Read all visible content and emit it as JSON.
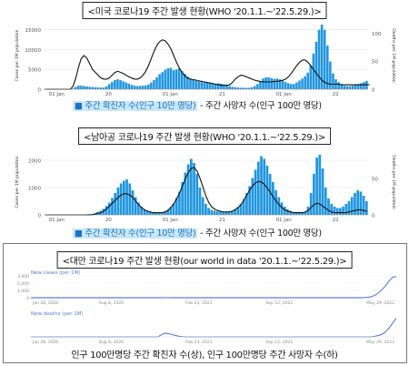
{
  "panels": [
    {
      "title": "<미국 코로나19 주간 발생 현황(WHO '20.1.1.~'22.5.29.)>",
      "legend_cases": "■ 주간 확진자 수(인구 10만 명당)",
      "legend_deaths": "- 주간 사망자 수(인구 100만 명당)",
      "chart_data": {
        "type": "bar",
        "ylabel_left": "Cases per 1M population",
        "ylabel_right": "Deaths per 1M population",
        "y_ticks_left": [
          "0",
          "5000",
          "10000",
          "15000"
        ],
        "y_ticks_right": [
          "0",
          "50",
          "100"
        ],
        "x_ticks": [
          "01 Jan",
          "20",
          "01 Jan",
          "21",
          "01 Jan",
          "22"
        ],
        "ylim_left": [
          0,
          17000
        ],
        "ylim_right": [
          0,
          120
        ],
        "series": [
          {
            "name": "cases",
            "values": [
              0,
              0,
              0,
              0,
              0,
              0,
              0,
              0,
              0,
              20,
              200,
              600,
              900,
              900,
              800,
              700,
              600,
              550,
              500,
              450,
              400,
              420,
              700,
              1300,
              1800,
              2300,
              2500,
              2300,
              2000,
              1700,
              1400,
              1100,
              900,
              800,
              850,
              900,
              950,
              1200,
              1700,
              2300,
              3000,
              3800,
              4300,
              4900,
              5300,
              5400,
              4800,
              5000,
              5300,
              4600,
              3900,
              3200,
              2700,
              2400,
              2100,
              1900,
              1800,
              1700,
              1600,
              1500,
              1450,
              1400,
              1500,
              1400,
              1200,
              1000,
              800,
              600,
              500,
              420,
              380,
              350,
              330,
              350,
              500,
              800,
              1300,
              2000,
              2700,
              3000,
              3000,
              2800,
              2600,
              2700,
              2500,
              2200,
              1800,
              1500,
              1300,
              1300,
              1700,
              2200,
              2700,
              3300,
              4200,
              6000,
              9000,
              12000,
              15000,
              16300,
              15000,
              11000,
              7000,
              4000,
              2500,
              1800,
              1300,
              900,
              800,
              800,
              900,
              1100,
              1300,
              1500,
              1800,
              2100
            ]
          },
          {
            "name": "deaths",
            "values": [
              0,
              0,
              0,
              0,
              0,
              0,
              0,
              0,
              0,
              0,
              5,
              20,
              40,
              55,
              60,
              55,
              45,
              35,
              30,
              25,
              20,
              18,
              18,
              20,
              25,
              30,
              32,
              30,
              28,
              25,
              22,
              20,
              18,
              18,
              20,
              25,
              32,
              42,
              55,
              68,
              78,
              85,
              88,
              86,
              80,
              72,
              60,
              48,
              38,
              30,
              24,
              20,
              18,
              17,
              16,
              15,
              14,
              13,
              12,
              11,
              10,
              9,
              8,
              7,
              7,
              7,
              8,
              12,
              18,
              22,
              25,
              24,
              22,
              20,
              18,
              16,
              15,
              14,
              13,
              13,
              13,
              13,
              14,
              14,
              15,
              16,
              18,
              22,
              28,
              35,
              42,
              48,
              52,
              52,
              48,
              42,
              35,
              28,
              22,
              16,
              12,
              10,
              9,
              9,
              9,
              9,
              8,
              8,
              8,
              8,
              8,
              8,
              8,
              8,
              8,
              8,
              8
            ]
          }
        ]
      }
    },
    {
      "title": "<남아공 코로나19 주간 발생 현황(WHO '20.1.1.~'22.5.29.)>",
      "legend_cases": "■ 주간 확진자 수(인구 10만 명당)",
      "legend_deaths": "- 주간 사망자 수(인구 100만 명당)",
      "chart_data": {
        "type": "bar",
        "ylabel_left": "Cases per 1M population",
        "ylabel_right": "Deaths per 1M population",
        "y_ticks_left": [
          "0",
          "1000",
          "2000"
        ],
        "y_ticks_right": [
          "0",
          "50"
        ],
        "x_ticks": [
          "01 Jan",
          "20",
          "01 Jan",
          "21",
          "01 Jan",
          "22"
        ],
        "ylim_left": [
          0,
          2400
        ],
        "ylim_right": [
          0,
          90
        ],
        "series": [
          {
            "name": "cases",
            "values": [
              0,
              0,
              0,
              0,
              0,
              0,
              0,
              0,
              0,
              0,
              0,
              5,
              10,
              15,
              20,
              30,
              40,
              60,
              100,
              150,
              220,
              330,
              450,
              620,
              800,
              1000,
              1150,
              1250,
              1300,
              1150,
              900,
              650,
              450,
              300,
              200,
              150,
              120,
              100,
              90,
              90,
              100,
              130,
              180,
              280,
              420,
              620,
              850,
              1200,
              1550,
              1850,
              2050,
              1900,
              1500,
              1000,
              650,
              400,
              250,
              180,
              150,
              130,
              120,
              110,
              110,
              120,
              150,
              200,
              280,
              400,
              580,
              800,
              1050,
              1350,
              1650,
              1950,
              2150,
              2050,
              1800,
              1500,
              1200,
              900,
              650,
              450,
              300,
              200,
              150,
              100,
              80,
              70,
              70,
              100,
              300,
              800,
              1500,
              2100,
              2200,
              1700,
              1000,
              600,
              400,
              300,
              250,
              250,
              300,
              400,
              500,
              650,
              800,
              900,
              850,
              700,
              500
            ]
          },
          {
            "name": "deaths",
            "values": [
              0,
              0,
              0,
              0,
              0,
              0,
              0,
              0,
              0,
              0,
              0,
              0,
              0,
              0,
              0,
              0,
              0,
              1,
              2,
              3,
              5,
              8,
              12,
              16,
              20,
              24,
              27,
              29,
              29,
              27,
              24,
              19,
              14,
              10,
              7,
              5,
              4,
              3,
              3,
              3,
              3,
              4,
              6,
              10,
              15,
              22,
              30,
              40,
              50,
              58,
              64,
              65,
              60,
              50,
              38,
              26,
              17,
              11,
              8,
              6,
              5,
              4,
              4,
              4,
              5,
              7,
              10,
              14,
              20,
              27,
              34,
              40,
              44,
              46,
              45,
              42,
              37,
              31,
              25,
              19,
              14,
              10,
              7,
              5,
              4,
              3,
              3,
              3,
              3,
              4,
              6,
              10,
              14,
              16,
              15,
              12,
              9,
              6,
              4,
              3,
              3,
              3,
              3,
              3,
              4,
              5,
              6,
              7,
              7,
              6,
              5
            ]
          }
        ]
      }
    },
    {
      "title": "<대만 코로나19 주간 발생 현황(our world in data '20.1.1.~'22.5.29.)>",
      "footer": "인구 100만명당 주간 확진자 수(상), 인구 100만명당 주간 사망자 수(하)",
      "cases_label": "New cases (per 1M)",
      "deaths_label": "New deaths (per 1M)",
      "x_ticks": [
        "Jan 28, 2020",
        "Aug 8, 2020",
        "Feb 23, 2021",
        "Sep 12, 2021",
        "May 29, 2022"
      ],
      "cases_y_ticks": [
        "3,000",
        "2,000",
        "1,000",
        "0"
      ],
      "chart_data": {
        "type": "line",
        "series": [
          {
            "name": "New cases (per 1M)",
            "values": [
              0,
              0,
              0,
              0,
              0,
              0,
              0,
              0,
              0,
              0,
              0,
              0,
              0,
              0,
              0,
              0,
              0,
              0,
              0,
              0,
              0,
              0,
              0,
              0,
              0,
              0,
              0,
              0,
              0,
              0,
              0,
              0,
              0,
              0,
              0,
              0,
              5,
              10,
              8,
              5,
              3,
              2,
              1,
              1,
              1,
              0,
              0,
              0,
              0,
              0,
              0,
              0,
              0,
              0,
              0,
              0,
              0,
              0,
              0,
              0,
              0,
              0,
              0,
              0,
              0,
              0,
              0,
              0,
              0,
              0,
              0,
              0,
              0,
              0,
              0,
              0,
              0,
              0,
              0,
              0,
              0,
              0,
              0,
              0,
              0,
              0,
              0,
              0,
              0,
              1,
              2,
              5,
              20,
              60,
              150,
              350,
              700,
              1200,
              1800,
              2500,
              3100,
              3200
            ]
          },
          {
            "name": "New deaths (per 1M)",
            "values": [
              0,
              0,
              0,
              0,
              0,
              0,
              0,
              0,
              0,
              0,
              0,
              0,
              0,
              0,
              0,
              0,
              0,
              0,
              0,
              0,
              0,
              0,
              0,
              0,
              0,
              0,
              0,
              0,
              0,
              0,
              0,
              0,
              0,
              0,
              0,
              0,
              0.3,
              0.6,
              0.5,
              0.4,
              0.2,
              0.1,
              0.05,
              0,
              0,
              0,
              0,
              0,
              0,
              0,
              0,
              0,
              0,
              0,
              0,
              0,
              0,
              0,
              0,
              0,
              0,
              0,
              0,
              0,
              0,
              0,
              0,
              0,
              0,
              0,
              0,
              0,
              0,
              0,
              0,
              0,
              0,
              0,
              0,
              0,
              0,
              0,
              0,
              0,
              0,
              0,
              0,
              0,
              0,
              0,
              0,
              0,
              0,
              0,
              0,
              0.1,
              0.2,
              0.4,
              0.8,
              1.4,
              2.2,
              3.0
            ]
          }
        ]
      }
    }
  ],
  "colors": {
    "bar": "#2196e0",
    "line": "#111111",
    "taiwan_line": "#3a5bd9"
  }
}
